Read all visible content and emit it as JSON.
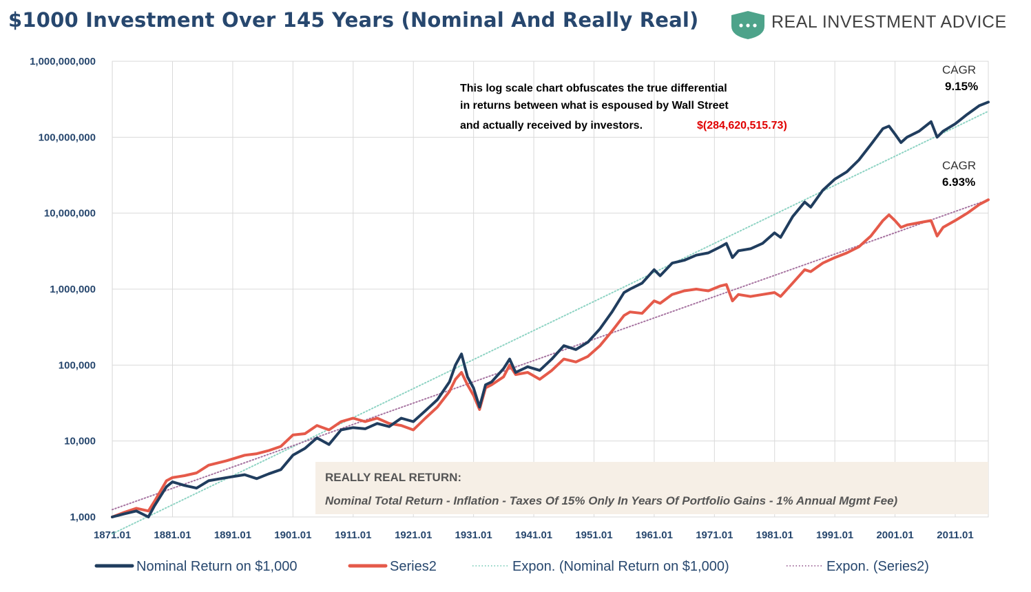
{
  "header": {
    "title": "$1000 Investment Over 145 Years (Nominal And Really Real)",
    "brand": "REAL INVESTMENT ADVICE",
    "brand_color": "#4da38a"
  },
  "chart_data": {
    "type": "line",
    "yscale": "log",
    "ylim": [
      1000,
      1000000000
    ],
    "xlim": [
      1871,
      2016.5
    ],
    "y_ticks": [
      "1,000",
      "10,000",
      "100,000",
      "1,000,000",
      "10,000,000",
      "100,000,000",
      "1,000,000,000"
    ],
    "x_ticks": [
      "1871.01",
      "1881.01",
      "1891.01",
      "1901.01",
      "1911.01",
      "1921.01",
      "1931.01",
      "1941.01",
      "1951.01",
      "1961.01",
      "1971.01",
      "1981.01",
      "1991.01",
      "2001.01",
      "2011.01"
    ],
    "series": [
      {
        "name": "Nominal Return on $1,000",
        "color": "#203d5e",
        "style": "solid",
        "x": [
          1871,
          1873,
          1875,
          1877,
          1878,
          1880,
          1881,
          1883,
          1885,
          1887,
          1890,
          1893,
          1895,
          1897,
          1899,
          1901,
          1903,
          1905,
          1907,
          1909,
          1911,
          1913,
          1915,
          1917,
          1919,
          1921,
          1923,
          1925,
          1927,
          1928,
          1929,
          1930,
          1931,
          1932,
          1933,
          1934,
          1936,
          1937,
          1938,
          1940,
          1942,
          1944,
          1946,
          1948,
          1950,
          1952,
          1954,
          1956,
          1957,
          1959,
          1961,
          1962,
          1964,
          1966,
          1968,
          1970,
          1972,
          1973,
          1974,
          1975,
          1977,
          1979,
          1981,
          1982,
          1984,
          1986,
          1987,
          1989,
          1991,
          1993,
          1995,
          1997,
          1999,
          2000,
          2001,
          2002,
          2003,
          2005,
          2007,
          2008,
          2009,
          2011,
          2013,
          2015,
          2016.5
        ],
        "values": [
          1000,
          1100,
          1200,
          1000,
          1400,
          2500,
          2900,
          2600,
          2400,
          3000,
          3300,
          3600,
          3200,
          3700,
          4200,
          6500,
          8000,
          11000,
          9000,
          14000,
          15000,
          14500,
          17000,
          15500,
          20000,
          18000,
          25000,
          35000,
          60000,
          100000,
          140000,
          70000,
          50000,
          28000,
          55000,
          60000,
          90000,
          120000,
          80000,
          95000,
          85000,
          120000,
          180000,
          160000,
          200000,
          300000,
          500000,
          900000,
          1000000,
          1200000,
          1800000,
          1500000,
          2200000,
          2400000,
          2800000,
          3000000,
          3600000,
          4000000,
          2600000,
          3200000,
          3400000,
          4000000,
          5500000,
          4800000,
          9000000,
          14000000,
          12000000,
          20000000,
          28000000,
          35000000,
          50000000,
          80000000,
          130000000,
          140000000,
          110000000,
          85000000,
          100000000,
          120000000,
          160000000,
          100000000,
          120000000,
          150000000,
          200000000,
          260000000,
          290000000
        ]
      },
      {
        "name": "Series2",
        "color": "#e55a4a",
        "style": "solid",
        "x": [
          1871,
          1873,
          1875,
          1877,
          1878,
          1880,
          1881,
          1883,
          1885,
          1887,
          1890,
          1893,
          1895,
          1897,
          1899,
          1901,
          1903,
          1905,
          1907,
          1909,
          1911,
          1913,
          1915,
          1917,
          1919,
          1921,
          1923,
          1925,
          1927,
          1928,
          1929,
          1930,
          1931,
          1932,
          1933,
          1934,
          1936,
          1937,
          1938,
          1940,
          1942,
          1944,
          1946,
          1948,
          1950,
          1952,
          1954,
          1956,
          1957,
          1959,
          1961,
          1962,
          1964,
          1966,
          1968,
          1970,
          1972,
          1973,
          1974,
          1975,
          1977,
          1979,
          1981,
          1982,
          1984,
          1986,
          1987,
          1989,
          1991,
          1993,
          1995,
          1997,
          1999,
          2000,
          2001,
          2002,
          2003,
          2005,
          2007,
          2008,
          2009,
          2011,
          2013,
          2015,
          2016.5
        ],
        "values": [
          1000,
          1150,
          1300,
          1200,
          1600,
          3000,
          3300,
          3500,
          3800,
          4800,
          5500,
          6500,
          6800,
          7500,
          8500,
          12000,
          12500,
          16000,
          14000,
          18000,
          20000,
          18000,
          20000,
          17000,
          16000,
          14000,
          20000,
          28000,
          45000,
          65000,
          80000,
          55000,
          40000,
          26000,
          50000,
          55000,
          70000,
          100000,
          75000,
          80000,
          65000,
          85000,
          120000,
          110000,
          130000,
          180000,
          280000,
          450000,
          500000,
          480000,
          700000,
          650000,
          850000,
          950000,
          1000000,
          950000,
          1100000,
          1150000,
          700000,
          850000,
          800000,
          850000,
          900000,
          800000,
          1200000,
          1800000,
          1700000,
          2200000,
          2600000,
          3000000,
          3600000,
          5000000,
          8000000,
          9500000,
          8000000,
          6500000,
          7000000,
          7500000,
          8000000,
          5000000,
          6500000,
          8000000,
          10000000,
          13000000,
          15000000
        ]
      },
      {
        "name": "Expon. (Nominal Return on $1,000)",
        "color": "#8dd3c3",
        "style": "dotted",
        "x": [
          1871,
          2016.5
        ],
        "values": [
          600,
          220000000
        ]
      },
      {
        "name": "Expon. (Series2)",
        "color": "#a673a0",
        "style": "dotted",
        "x": [
          1871,
          2016.5
        ],
        "values": [
          1250,
          15000000
        ]
      }
    ],
    "annotations": {
      "note_line1": "This log scale chart obfuscates the true differential",
      "note_line2": "in returns between what is espoused by Wall Street",
      "note_line3": "and actually received by investors.",
      "difference": "$(284,620,515.73)",
      "difference_color": "#e00000",
      "cagr_label": "CAGR",
      "cagr_nominal": "9.15%",
      "cagr_real": "6.93%",
      "box_title": "REALLY REAL RETURN:",
      "box_text": "Nominal Total Return - Inflation - Taxes Of 15% Only In Years Of Portfolio Gains - 1% Annual Mgmt Fee)"
    }
  }
}
